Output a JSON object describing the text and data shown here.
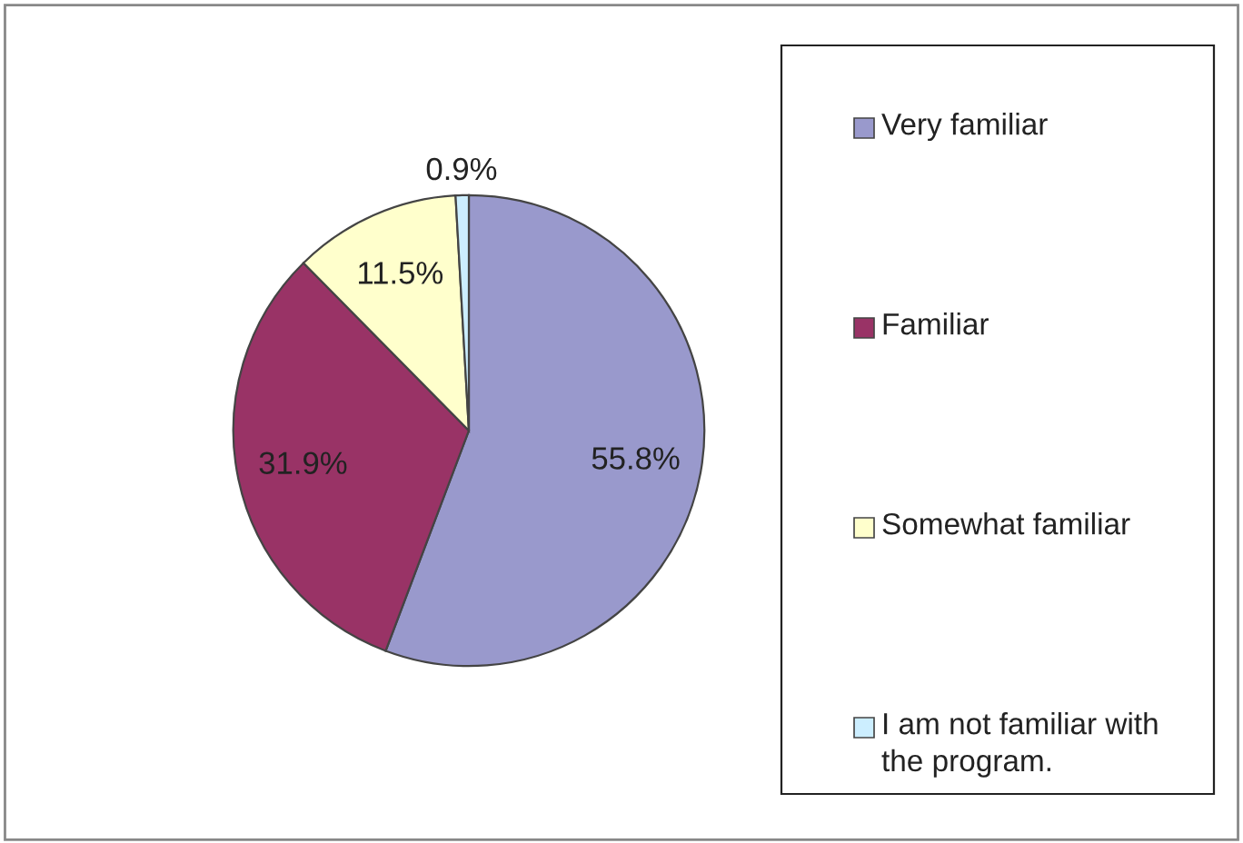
{
  "chart_data": {
    "type": "pie",
    "categories": [
      "Very familiar",
      "Familiar",
      "Somewhat familiar",
      "I am not familiar with\nthe program."
    ],
    "values": [
      55.8,
      31.9,
      11.5,
      0.9
    ],
    "colors": [
      "#9999cc",
      "#993366",
      "#ffffcc",
      "#cceeff"
    ],
    "value_labels": [
      "55.8%",
      "31.9%",
      "11.5%",
      "0.9%"
    ],
    "legend": "right"
  }
}
